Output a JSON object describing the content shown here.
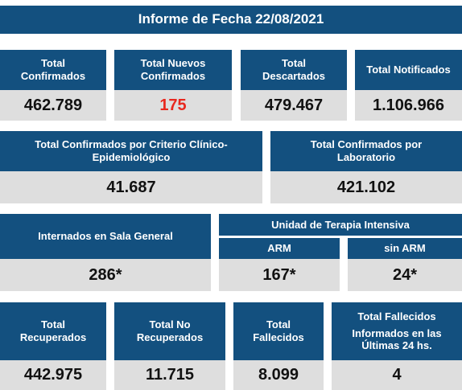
{
  "title": "Informe de Fecha 22/08/2021",
  "row1": [
    {
      "label_l1": "Total",
      "label_l2": "Confirmados",
      "value": "462.789"
    },
    {
      "label_l1": "Total Nuevos",
      "label_l2": "Confirmados",
      "value": "175"
    },
    {
      "label_l1": "Total",
      "label_l2": "Descartados",
      "value": "479.467"
    },
    {
      "label_l1": "Total Notificados",
      "label_l2": "",
      "value": "1.106.966"
    }
  ],
  "row2": [
    {
      "label_l1": "Total Confirmados por Criterio Clínico-",
      "label_l2": "Epidemiológico",
      "value": "41.687"
    },
    {
      "label_l1": "Total Confirmados por",
      "label_l2": "Laboratorio",
      "value": "421.102"
    }
  ],
  "row3": {
    "general": {
      "label": "Internados en Sala General",
      "value": "286*"
    },
    "uti_title": "Unidad de Terapia Intensiva",
    "arm": {
      "label": "ARM",
      "value": "167*"
    },
    "sin_arm": {
      "label": "sin ARM",
      "value": "24*"
    }
  },
  "row4": [
    {
      "label_l1": "Total",
      "label_l2": "Recuperados",
      "value": "442.975"
    },
    {
      "label_l1": "Total No",
      "label_l2": "Recuperados",
      "value": "11.715"
    },
    {
      "label_l1": "Total",
      "label_l2": "Fallecidos",
      "value": "8.099"
    }
  ],
  "fallecidos24": {
    "title": "Total Fallecidos",
    "sub_l1": "Informados en las",
    "sub_l2": "Últimas 24 hs.",
    "value": "4"
  },
  "colors": {
    "header_bg": "#13507f",
    "value_bg": "#dedede",
    "highlight": "#e8281e"
  }
}
